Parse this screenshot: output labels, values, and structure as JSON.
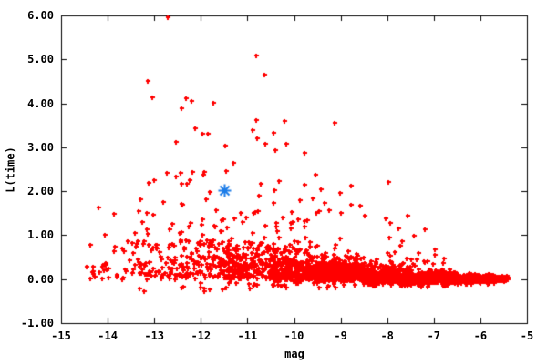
{
  "figure": {
    "background_color": "#ffffff",
    "frame_color": "#000000",
    "text_color": "#000000"
  },
  "chart_data": {
    "type": "scatter",
    "title": "",
    "xlabel": "mag",
    "ylabel": "L(time)",
    "xlim": [
      -15,
      -5
    ],
    "ylim": [
      -1,
      6
    ],
    "grid": false,
    "legend": "none",
    "tick_style": "inward ticks on all four frame sides",
    "x_ticks": [
      {
        "v": -15,
        "label": "-15"
      },
      {
        "v": -14,
        "label": "-14"
      },
      {
        "v": -13,
        "label": "-13"
      },
      {
        "v": -12,
        "label": "-12"
      },
      {
        "v": -11,
        "label": "-11"
      },
      {
        "v": -10,
        "label": "-10"
      },
      {
        "v": -9,
        "label": "-9"
      },
      {
        "v": -8,
        "label": "-8"
      },
      {
        "v": -7,
        "label": "-7"
      },
      {
        "v": -6,
        "label": "-6"
      },
      {
        "v": -5,
        "label": "-5"
      }
    ],
    "y_ticks": [
      {
        "v": -1,
        "label": "-1.00"
      },
      {
        "v": 0,
        "label": "0.00"
      },
      {
        "v": 1,
        "label": "1.00"
      },
      {
        "v": 2,
        "label": "2.00"
      },
      {
        "v": 3,
        "label": "3.00"
      },
      {
        "v": 4,
        "label": "4.00"
      },
      {
        "v": 5,
        "label": "5.00"
      },
      {
        "v": 6,
        "label": "6.00"
      }
    ],
    "series": [
      {
        "name": "red-sample-points",
        "marker": "plus",
        "color": "#ff0000",
        "description": "dense funnel-shaped cloud: wide spread (y 0 to ~1.7) near mag -13, converging to a tight horizontal band at y~0.05 toward mag -5.4",
        "cloud": {
          "seed": 1337,
          "down_prob": 0.07,
          "segments": [
            {
              "x0": -14.5,
              "x1": -13.5,
              "n": 30,
              "base": 0.07,
              "sigma": 0.45
            },
            {
              "x0": -13.5,
              "x1": -12.5,
              "n": 70,
              "base": 0.1,
              "sigma": 0.5
            },
            {
              "x0": -12.5,
              "x1": -11.5,
              "n": 120,
              "base": 0.1,
              "sigma": 0.45
            },
            {
              "x0": -11.5,
              "x1": -10.5,
              "n": 200,
              "base": 0.08,
              "sigma": 0.36
            },
            {
              "x0": -10.5,
              "x1": -9.5,
              "n": 300,
              "base": 0.05,
              "sigma": 0.3
            },
            {
              "x0": -9.5,
              "x1": -8.5,
              "n": 400,
              "base": 0.02,
              "sigma": 0.24
            },
            {
              "x0": -8.5,
              "x1": -7.5,
              "n": 430,
              "base": -0.03,
              "sigma": 0.18
            },
            {
              "x0": -7.5,
              "x1": -6.5,
              "n": 430,
              "base": -0.05,
              "sigma": 0.13
            },
            {
              "x0": -6.5,
              "x1": -5.7,
              "n": 310,
              "base": -0.04,
              "sigma": 0.08
            },
            {
              "x0": -5.7,
              "x1": -5.4,
              "n": 60,
              "base": -0.03,
              "sigma": 0.05
            }
          ],
          "upper_groups": [
            {
              "n": 110,
              "x0": -14.0,
              "x1": -8.2,
              "y0": 0.7,
              "y1": 2.45,
              "pow": 2.2
            },
            {
              "n": 22,
              "x0": -8.3,
              "x1": -6.7,
              "y0": 0.35,
              "y1": 1.45,
              "pow": 2.0
            }
          ]
        },
        "outlier_points": [
          [
            -12.72,
            5.95
          ],
          [
            -10.81,
            5.08
          ],
          [
            -10.63,
            4.65
          ],
          [
            -13.15,
            4.5
          ],
          [
            -13.05,
            4.14
          ],
          [
            -12.32,
            4.12
          ],
          [
            -12.2,
            4.05
          ],
          [
            -11.74,
            4.01
          ],
          [
            -12.42,
            3.89
          ],
          [
            -10.82,
            3.62
          ],
          [
            -10.2,
            3.59
          ],
          [
            -9.13,
            3.55
          ],
          [
            -12.12,
            3.44
          ],
          [
            -10.9,
            3.4
          ],
          [
            -10.45,
            3.32
          ],
          [
            -11.97,
            3.31
          ],
          [
            -11.85,
            3.31
          ],
          [
            -10.79,
            3.2
          ],
          [
            -12.53,
            3.13
          ],
          [
            -10.62,
            3.07
          ],
          [
            -10.17,
            3.07
          ],
          [
            -11.48,
            3.04
          ],
          [
            -10.41,
            2.94
          ],
          [
            -9.78,
            2.88
          ],
          [
            -11.31,
            2.64
          ],
          [
            -11.45,
            2.45
          ],
          [
            -11.93,
            2.44
          ],
          [
            -13.12,
            2.19
          ],
          [
            -13.0,
            2.25
          ],
          [
            -12.42,
            2.17
          ],
          [
            -12.25,
            2.26
          ],
          [
            -10.72,
            2.17
          ],
          [
            -10.32,
            2.23
          ],
          [
            -9.78,
            2.14
          ],
          [
            -7.98,
            2.2
          ],
          [
            -8.58,
            1.67
          ],
          [
            -9.0,
            1.51
          ],
          [
            -8.03,
            1.38
          ],
          [
            -7.93,
            1.28
          ],
          [
            -7.75,
            1.15
          ],
          [
            -7.42,
            0.98
          ],
          [
            -6.98,
            0.68
          ],
          [
            -14.2,
            1.62
          ],
          [
            -13.87,
            1.49
          ],
          [
            -13.17,
            1.5
          ]
        ]
      },
      {
        "name": "highlighted-point",
        "marker": "star",
        "color": "#1c7ce8",
        "points": [
          [
            -11.5,
            2.02
          ]
        ]
      }
    ]
  }
}
